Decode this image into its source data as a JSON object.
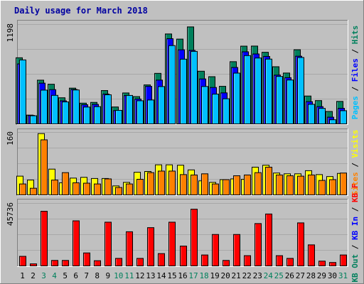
{
  "chart_data": [
    {
      "type": "bar",
      "title": "Daily usage for March 2018",
      "categories": [
        "1",
        "2",
        "3",
        "4",
        "5",
        "6",
        "7",
        "8",
        "9",
        "10",
        "11",
        "12",
        "13",
        "14",
        "15",
        "16",
        "17",
        "18",
        "19",
        "20",
        "21",
        "22",
        "23",
        "24",
        "25",
        "26",
        "27",
        "28",
        "29",
        "30",
        "31"
      ],
      "weekend_days": [
        "3",
        "4",
        "10",
        "11",
        "17",
        "18",
        "24",
        "25",
        "31"
      ],
      "ymax_label": "1198",
      "ylim": [
        0,
        1198
      ],
      "grid": true,
      "series": [
        {
          "name": "Hits",
          "color": "#00805c",
          "values": [
            797,
            106,
            527,
            478,
            315,
            431,
            250,
            259,
            402,
            204,
            373,
            329,
            470,
            609,
            1084,
            1022,
            1169,
            635,
            569,
            453,
            750,
            937,
            938,
            863,
            689,
            613,
            894,
            336,
            281,
            150,
            271
          ]
        },
        {
          "name": "Files",
          "color": "#0000ff",
          "values": [
            723,
            102,
            491,
            413,
            278,
            415,
            231,
            235,
            360,
            160,
            342,
            300,
            453,
            528,
            1027,
            893,
            886,
            542,
            439,
            374,
            680,
            869,
            843,
            813,
            588,
            557,
            816,
            268,
            208,
            81,
            188
          ]
        },
        {
          "name": "Pages",
          "color": "#00c0ff",
          "values": [
            771,
            98,
            407,
            344,
            265,
            409,
            203,
            208,
            351,
            163,
            343,
            279,
            288,
            450,
            944,
            780,
            874,
            451,
            359,
            303,
            612,
            823,
            794,
            781,
            572,
            529,
            800,
            236,
            187,
            50,
            159
          ]
        }
      ]
    },
    {
      "type": "bar",
      "ymax_label": "160",
      "ylim": [
        0,
        160
      ],
      "grid": true,
      "series": [
        {
          "name": "Visits",
          "color": "#ffff00",
          "values": [
            48,
            38,
            157,
            66,
            31,
            43,
            45,
            42,
            42,
            23,
            32,
            58,
            60,
            77,
            77,
            76,
            64,
            36,
            32,
            39,
            41,
            40,
            71,
            76,
            56,
            54,
            54,
            62,
            52,
            47,
            55
          ]
        },
        {
          "name": "Sites",
          "color": "#ff8000",
          "values": [
            28,
            17,
            141,
            38,
            57,
            31,
            30,
            28,
            41,
            19,
            28,
            40,
            57,
            61,
            61,
            52,
            51,
            54,
            28,
            39,
            49,
            51,
            57,
            71,
            51,
            49,
            48,
            51,
            37,
            39,
            56
          ]
        }
      ]
    },
    {
      "type": "bar",
      "ymax_label": "45736",
      "ylim": [
        0,
        45736
      ],
      "grid": true,
      "series": [
        {
          "name": "KB F",
          "color": "#ff0000",
          "values": [
            7000,
            1500,
            40000,
            4000,
            4000,
            33000,
            9500,
            3800,
            32000,
            5500,
            25000,
            5500,
            28000,
            9000,
            32000,
            14500,
            41500,
            8000,
            23000,
            4000,
            23000,
            7500,
            31000,
            38000,
            7500,
            5500,
            31500,
            15400,
            3500,
            2500,
            8000
          ]
        },
        {
          "name": "KB In",
          "color": "#0000ff",
          "values": []
        },
        {
          "name": "KB Out",
          "color": "#00805c",
          "values": []
        }
      ]
    }
  ]
}
